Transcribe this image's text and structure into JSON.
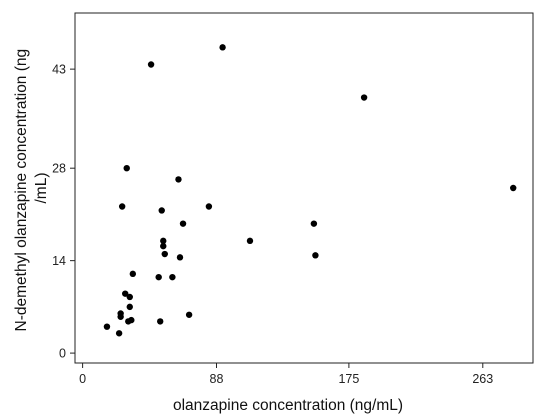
{
  "chart_data": {
    "type": "scatter",
    "title": "",
    "xlabel": "olanzapine concentration (ng/mL)",
    "ylabel_lines": [
      "N-demethyl olanzapine concentration (ng",
      "/mL)"
    ],
    "x_ticks": [
      0,
      88,
      175,
      263
    ],
    "x_tick_labels": [
      "0",
      "88",
      "175",
      "263"
    ],
    "y_ticks": [
      0,
      14,
      28,
      43
    ],
    "y_tick_labels": [
      "0",
      "14",
      "28",
      "43"
    ],
    "xlim": [
      -5,
      296
    ],
    "ylim": [
      -1.5,
      51.5
    ],
    "grid": false,
    "marker_color": "#000000",
    "points": [
      {
        "x": 16,
        "y": 4.0
      },
      {
        "x": 24,
        "y": 3.0
      },
      {
        "x": 25,
        "y": 5.5
      },
      {
        "x": 25,
        "y": 6.0
      },
      {
        "x": 28,
        "y": 9.0
      },
      {
        "x": 30,
        "y": 4.8
      },
      {
        "x": 31,
        "y": 7.0
      },
      {
        "x": 31,
        "y": 8.5
      },
      {
        "x": 32,
        "y": 5.0
      },
      {
        "x": 33,
        "y": 12.0
      },
      {
        "x": 26,
        "y": 22.2
      },
      {
        "x": 29,
        "y": 28.0
      },
      {
        "x": 45,
        "y": 43.7
      },
      {
        "x": 50,
        "y": 11.5
      },
      {
        "x": 51,
        "y": 4.8
      },
      {
        "x": 52,
        "y": 21.6
      },
      {
        "x": 53,
        "y": 17.0
      },
      {
        "x": 53,
        "y": 16.2
      },
      {
        "x": 54,
        "y": 15.0
      },
      {
        "x": 59,
        "y": 11.5
      },
      {
        "x": 63,
        "y": 26.3
      },
      {
        "x": 64,
        "y": 14.5
      },
      {
        "x": 66,
        "y": 19.6
      },
      {
        "x": 70,
        "y": 5.8
      },
      {
        "x": 83,
        "y": 22.2
      },
      {
        "x": 92,
        "y": 46.3
      },
      {
        "x": 110,
        "y": 17.0
      },
      {
        "x": 152,
        "y": 19.6
      },
      {
        "x": 153,
        "y": 14.8
      },
      {
        "x": 185,
        "y": 38.7
      },
      {
        "x": 283,
        "y": 25.0
      }
    ]
  }
}
